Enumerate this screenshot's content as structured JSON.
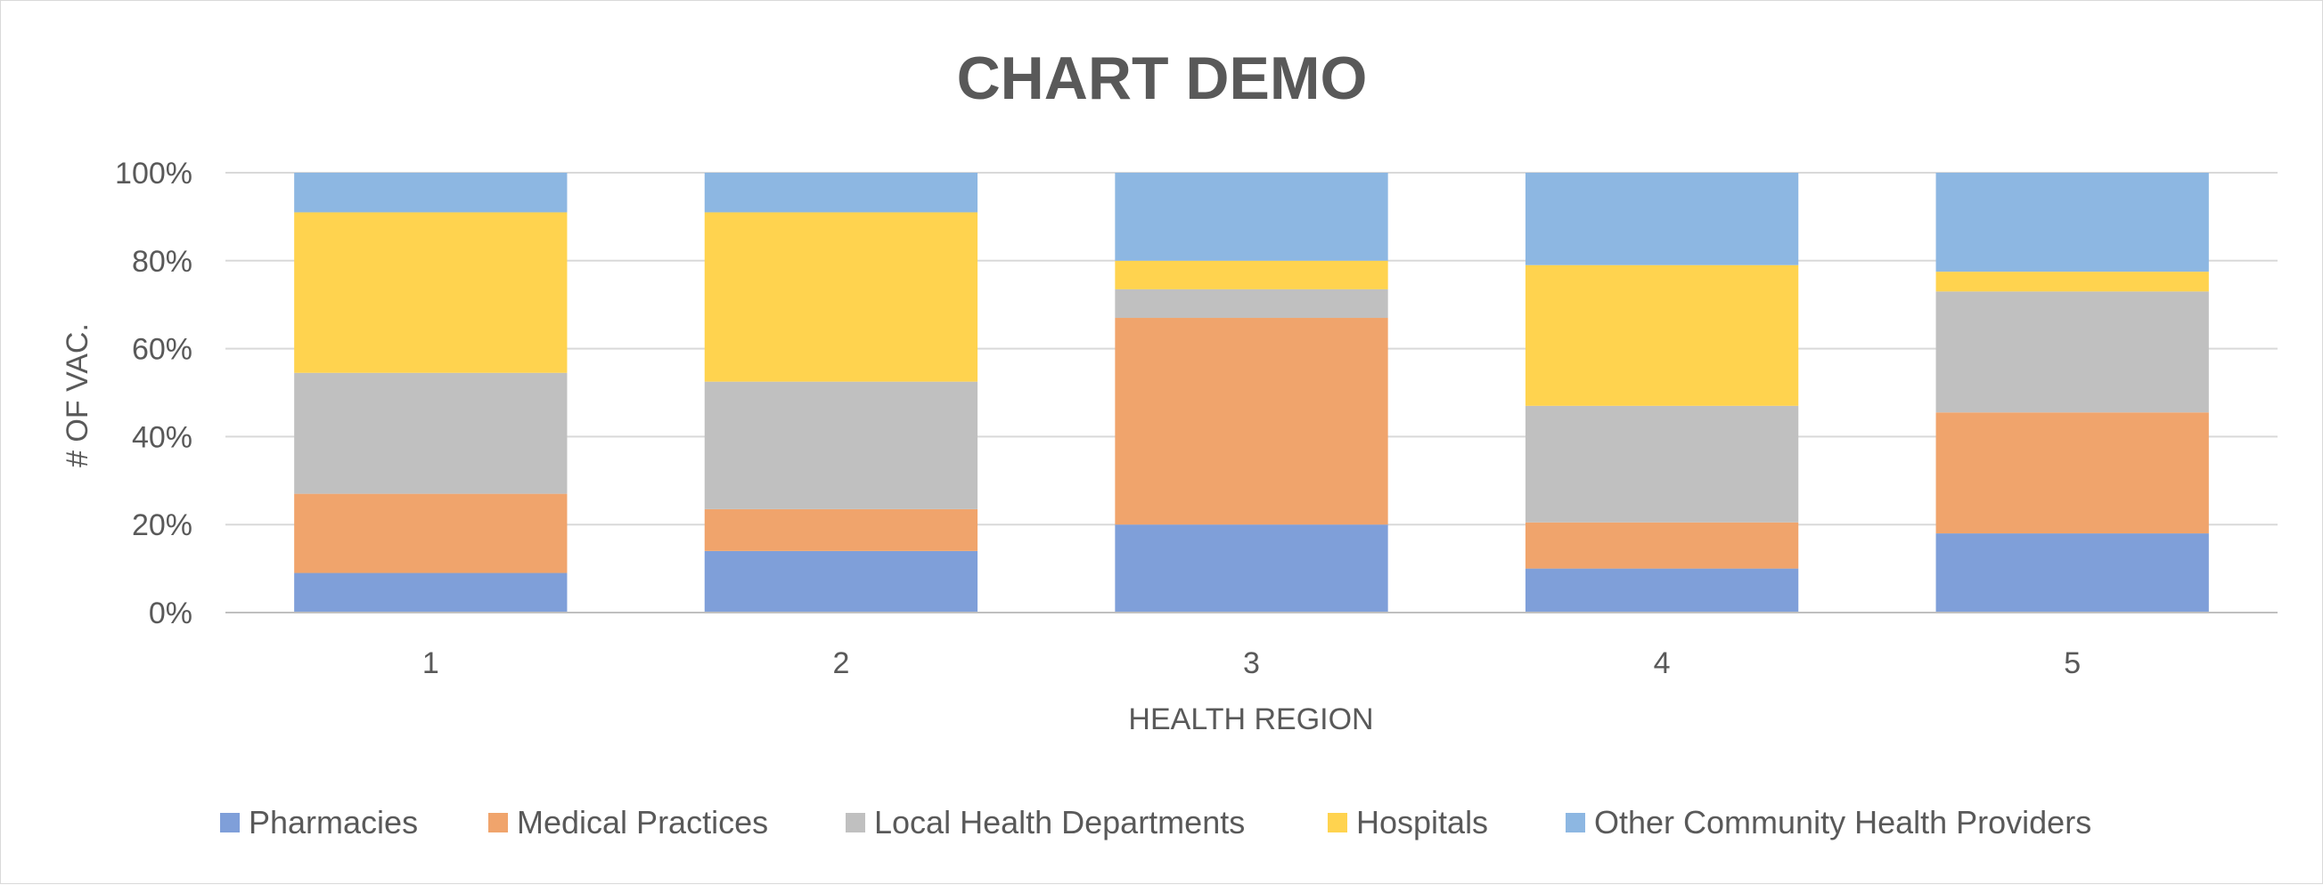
{
  "chart_data": {
    "type": "bar",
    "stacked": "percent",
    "title": "CHART DEMO",
    "xlabel": "HEALTH REGION",
    "ylabel": "# OF VAC.",
    "categories": [
      "1",
      "2",
      "3",
      "4",
      "5"
    ],
    "ylim": [
      0,
      100
    ],
    "yticks": [
      "0%",
      "20%",
      "40%",
      "60%",
      "80%",
      "100%"
    ],
    "grid": true,
    "legend_position": "bottom",
    "series": [
      {
        "name": "Pharmacies",
        "color": "#7f9fd9",
        "values": [
          9,
          14,
          20,
          10,
          18
        ]
      },
      {
        "name": "Medical Practices",
        "color": "#f0a46c",
        "values": [
          18,
          9.5,
          47,
          10.5,
          27.5
        ]
      },
      {
        "name": "Local Health Departments",
        "color": "#c0c0c0",
        "values": [
          27.5,
          29,
          6.5,
          26.5,
          27.5
        ]
      },
      {
        "name": "Hospitals",
        "color": "#ffd34f",
        "values": [
          36.5,
          38.5,
          6.5,
          32,
          4.5
        ]
      },
      {
        "name": "Other Community Health Providers",
        "color": "#8db7e2",
        "values": [
          9,
          9,
          20,
          21,
          22.5
        ]
      }
    ]
  }
}
